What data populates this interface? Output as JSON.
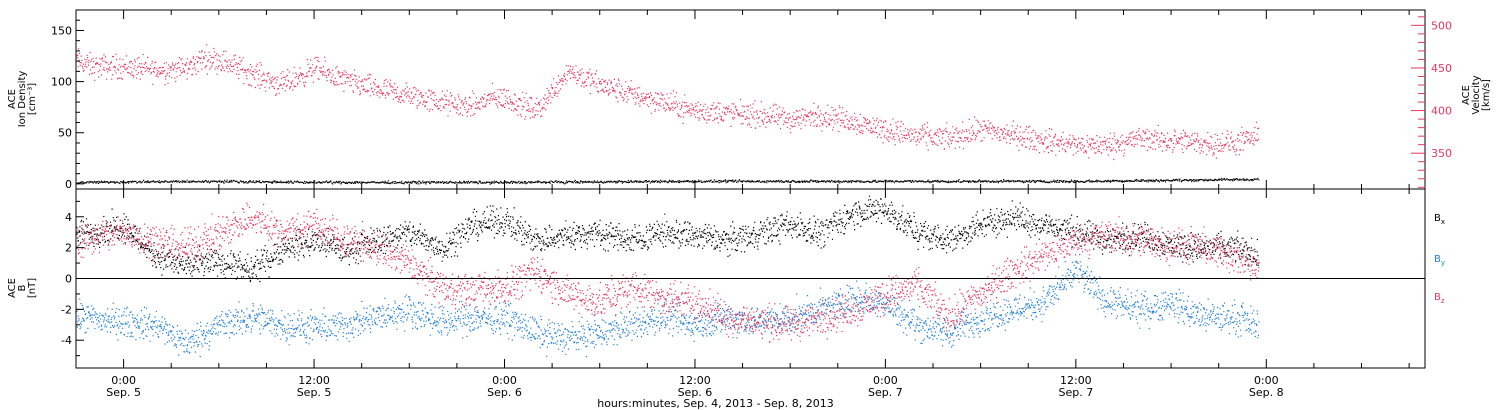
{
  "chart_data": [
    {
      "type": "scatter",
      "panel": "top",
      "ylabel": [
        "ACE",
        "Ion Density",
        "[cm⁻³]"
      ],
      "ylabel_right": [
        "ACE",
        "Velocity",
        "[km/s]"
      ],
      "ylim": [
        -5,
        170
      ],
      "yticks": [
        "0",
        "50",
        "100",
        "150"
      ],
      "ylim_right": [
        308,
        518
      ],
      "yticks_right": [
        "350",
        "400",
        "450",
        "500"
      ],
      "x_range_hours": [
        -3,
        82
      ],
      "data_end_hour": 71.5,
      "series": [
        {
          "axis": "left",
          "color": "#000000",
          "x": [
            -3,
            6,
            12,
            24,
            36,
            48,
            60,
            66,
            71.5
          ],
          "y": [
            2,
            3,
            2,
            2,
            3,
            3,
            3,
            4,
            5
          ]
        },
        {
          "axis": "right",
          "color": "#e8375e",
          "x": [
            -3,
            -2,
            0,
            2,
            4,
            5,
            6,
            8,
            10,
            12,
            14,
            16,
            18,
            20,
            22,
            23,
            24,
            26,
            28,
            30,
            32,
            34,
            36,
            38,
            40,
            42,
            44,
            46,
            48,
            50,
            52,
            54,
            56,
            58,
            60,
            62,
            64,
            66,
            68,
            70,
            71.5
          ],
          "y": [
            460,
            452,
            452,
            448,
            450,
            462,
            460,
            445,
            430,
            450,
            435,
            425,
            418,
            410,
            405,
            415,
            415,
            400,
            448,
            430,
            420,
            410,
            400,
            398,
            395,
            390,
            395,
            388,
            378,
            370,
            368,
            378,
            372,
            365,
            360,
            360,
            368,
            365,
            362,
            362,
            370
          ]
        }
      ]
    },
    {
      "type": "scatter",
      "panel": "bottom",
      "ylabel": [
        "ACE",
        "B",
        "[nT]"
      ],
      "ylim": [
        -5.8,
        5.8
      ],
      "yticks": [
        "-4",
        "-2",
        "0",
        "2",
        "4"
      ],
      "x_range_hours": [
        -3,
        82
      ],
      "data_end_hour": 71.5,
      "legend": [
        {
          "label": "B",
          "sub": "x",
          "color": "#000000"
        },
        {
          "label": "B",
          "sub": "y",
          "color": "#1e7ed8"
        },
        {
          "label": "B",
          "sub": "z",
          "color": "#e8375e"
        }
      ],
      "series": [
        {
          "name": "Bx",
          "color": "#000000",
          "x": [
            -3,
            0,
            2,
            4,
            6,
            8,
            10,
            12,
            14,
            16,
            18,
            20,
            22,
            24,
            26,
            28,
            30,
            32,
            34,
            36,
            38,
            40,
            42,
            44,
            46,
            48,
            50,
            52,
            54,
            56,
            58,
            60,
            62,
            64,
            66,
            68,
            70,
            71.5
          ],
          "y": [
            2.8,
            3.5,
            1.5,
            0.8,
            1.2,
            0.5,
            2.0,
            2.5,
            1.8,
            2.5,
            3.0,
            2.0,
            3.5,
            3.8,
            2.5,
            2.8,
            3.0,
            2.5,
            3.0,
            2.8,
            2.5,
            3.0,
            3.5,
            3.0,
            4.3,
            4.5,
            3.0,
            2.5,
            3.5,
            4.0,
            3.5,
            3.0,
            2.5,
            2.8,
            2.2,
            2.0,
            2.0,
            1.5
          ]
        },
        {
          "name": "By",
          "color": "#1e7ed8",
          "x": [
            -3,
            0,
            2,
            4,
            6,
            8,
            10,
            12,
            14,
            16,
            18,
            20,
            22,
            24,
            26,
            28,
            30,
            32,
            34,
            36,
            38,
            40,
            42,
            44,
            46,
            48,
            50,
            52,
            54,
            56,
            58,
            60,
            62,
            64,
            66,
            68,
            70,
            71.5
          ],
          "y": [
            -2.5,
            -2.8,
            -3.0,
            -4.2,
            -3.0,
            -2.5,
            -3.0,
            -3.2,
            -3.0,
            -2.5,
            -2.0,
            -2.8,
            -2.5,
            -2.5,
            -3.5,
            -3.8,
            -3.5,
            -3.0,
            -2.5,
            -3.0,
            -2.5,
            -2.8,
            -2.5,
            -2.0,
            -1.2,
            -1.5,
            -3.0,
            -3.5,
            -2.5,
            -2.0,
            -1.5,
            0.5,
            -1.5,
            -2.0,
            -1.5,
            -2.5,
            -2.5,
            -3.0
          ]
        },
        {
          "name": "Bz",
          "color": "#e8375e",
          "x": [
            -3,
            0,
            2,
            4,
            6,
            8,
            10,
            12,
            14,
            16,
            18,
            20,
            22,
            24,
            26,
            28,
            30,
            32,
            34,
            36,
            38,
            40,
            42,
            44,
            46,
            48,
            50,
            52,
            54,
            56,
            58,
            60,
            62,
            64,
            66,
            68,
            70,
            71.5
          ],
          "y": [
            2.5,
            3.0,
            2.5,
            2.0,
            3.0,
            4.0,
            3.0,
            3.5,
            2.5,
            2.0,
            1.0,
            -0.5,
            -0.8,
            -0.5,
            0.5,
            -1.0,
            -1.5,
            -0.5,
            -1.2,
            -1.5,
            -2.5,
            -2.8,
            -3.0,
            -2.5,
            -2.0,
            -1.0,
            -0.5,
            -2.5,
            -1.0,
            0.5,
            1.5,
            2.5,
            2.8,
            2.5,
            2.2,
            2.0,
            1.5,
            0.5
          ]
        }
      ]
    }
  ],
  "x_axis": {
    "ticks": [
      {
        "hour": 0,
        "time": "0:00",
        "date": "Sep. 5"
      },
      {
        "hour": 12,
        "time": "12:00",
        "date": "Sep. 5"
      },
      {
        "hour": 24,
        "time": "0:00",
        "date": "Sep. 6"
      },
      {
        "hour": 36,
        "time": "12:00",
        "date": "Sep. 6"
      },
      {
        "hour": 48,
        "time": "0:00",
        "date": "Sep. 7"
      },
      {
        "hour": 60,
        "time": "12:00",
        "date": "Sep. 7"
      },
      {
        "hour": 72,
        "time": "0:00",
        "date": "Sep. 8"
      }
    ],
    "label": "hours:minutes, Sep.  4, 2013 - Sep.  8, 2013"
  }
}
